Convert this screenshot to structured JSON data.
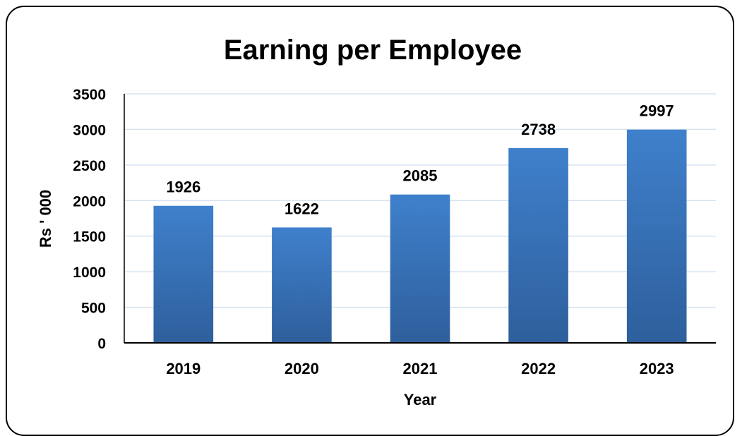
{
  "chart_data": {
    "type": "bar",
    "title": "Earning per Employee",
    "xlabel": "Year",
    "ylabel": "Rs ' 000",
    "categories": [
      "2019",
      "2020",
      "2021",
      "2022",
      "2023"
    ],
    "values": [
      1926,
      1622,
      2085,
      2738,
      2997
    ],
    "data_labels": [
      "1926",
      "1622",
      "2085",
      "2738",
      "2997"
    ],
    "ylim": [
      0,
      3500
    ],
    "yticks": [
      "0",
      "500",
      "1000",
      "1500",
      "2000",
      "2500",
      "3000",
      "3500"
    ],
    "grid": true,
    "legend": "none",
    "bar_color_top": "#3f80cc",
    "bar_color_bottom": "#2e5f9c",
    "grid_color": "#d6e2f0"
  }
}
